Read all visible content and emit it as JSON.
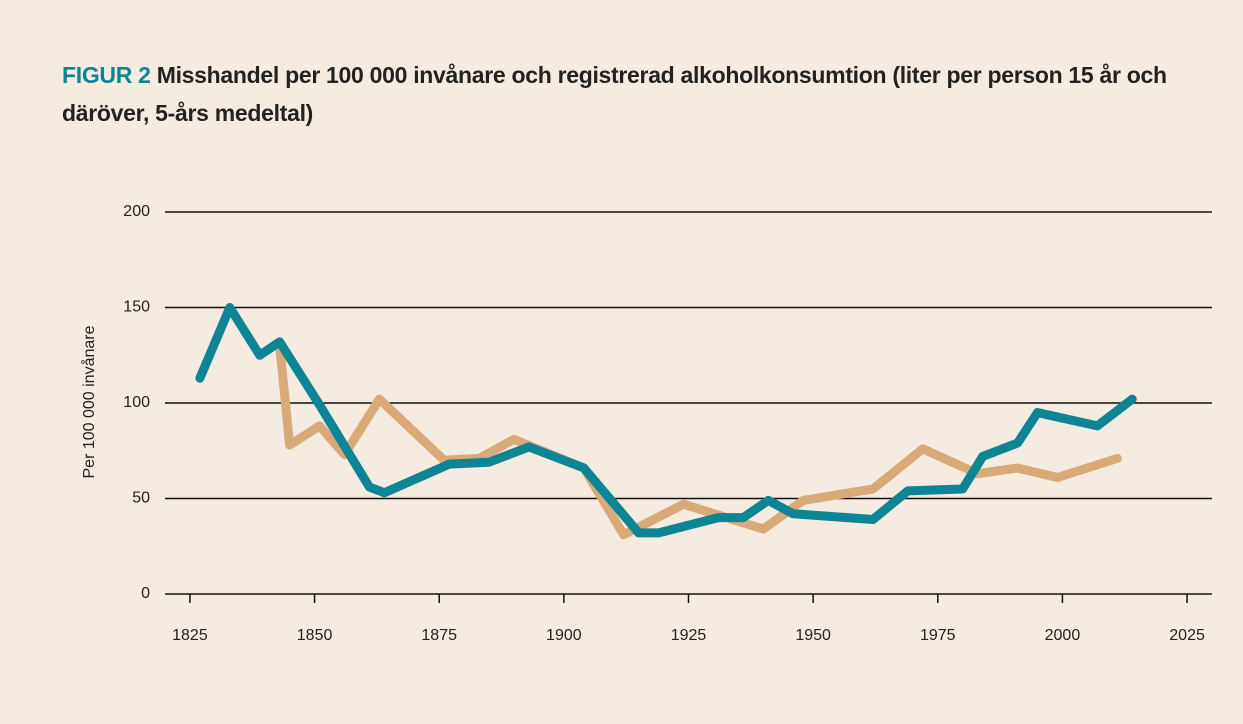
{
  "chart_data": {
    "type": "line",
    "label": "FIGUR 2",
    "title": "Misshandel per 100 000 invånare och registrerad alkoholkonsumtion (liter per person 15 år och däröver, 5-års medeltal)",
    "ylabel": "Per 100 000 invånare",
    "xlim": [
      1820,
      2030
    ],
    "xticks": [
      1825,
      1850,
      1875,
      1900,
      1925,
      1950,
      1975,
      2000,
      2025
    ],
    "ylim": [
      0,
      200
    ],
    "yticks": [
      0,
      50,
      100,
      150,
      200
    ],
    "grid": true,
    "series": [
      {
        "color": "#d9aa78",
        "x": [
          1843,
          1845,
          1851,
          1856,
          1863,
          1876,
          1883,
          1890,
          1904,
          1912,
          1924,
          1940,
          1948,
          1962,
          1972,
          1983,
          1991,
          1999,
          2011
        ],
        "values": [
          130,
          78,
          88,
          73,
          102,
          70,
          71,
          81,
          66,
          31,
          47,
          34,
          49,
          55,
          76,
          63,
          66,
          61,
          71
        ]
      },
      {
        "color": "#0e8595",
        "x": [
          1827,
          1833,
          1839,
          1843,
          1851,
          1861,
          1864,
          1877,
          1885,
          1893,
          1904,
          1915,
          1919,
          1931,
          1936,
          1941,
          1946,
          1962,
          1969,
          1980,
          1984,
          1991,
          1995,
          2007,
          2014
        ],
        "values": [
          113,
          150,
          125,
          132,
          99,
          56,
          53,
          68,
          69,
          77,
          66,
          32,
          32,
          40,
          40,
          49,
          42,
          39,
          54,
          55,
          72,
          79,
          95,
          88,
          102
        ]
      }
    ]
  }
}
